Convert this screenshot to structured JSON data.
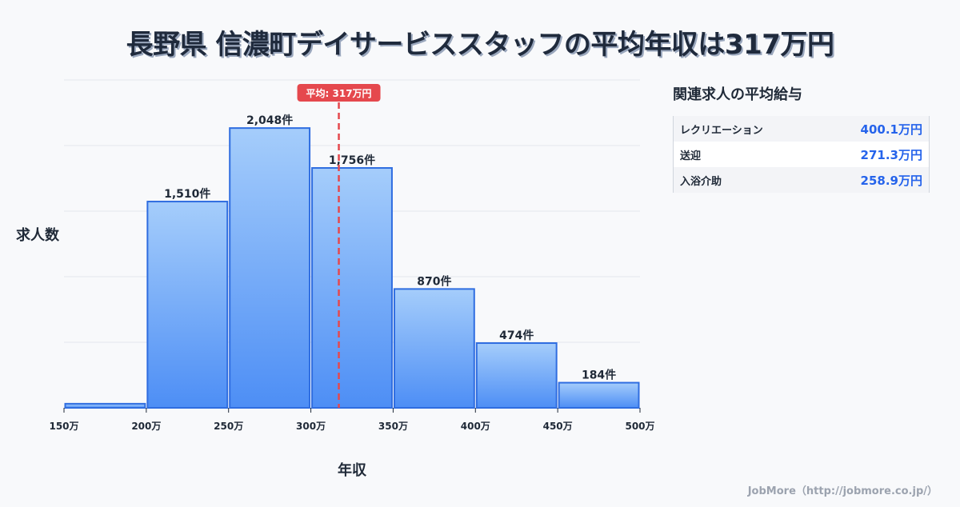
{
  "title": "長野県 信濃町デイサービススタッフの平均年収は317万円",
  "chart_data": {
    "type": "bar",
    "title": "長野県 信濃町デイサービススタッフの平均年収は317万円",
    "xlabel": "年収",
    "ylabel": "求人数",
    "categories": [
      "150-200万",
      "200-250万",
      "250-300万",
      "300-350万",
      "350-400万",
      "400-450万",
      "450-500万"
    ],
    "bin_edges": [
      150,
      200,
      250,
      300,
      350,
      400,
      450,
      500
    ],
    "x_tick_labels": [
      "150万",
      "200万",
      "250万",
      "300万",
      "350万",
      "400万",
      "450万",
      "500万"
    ],
    "values": [
      30,
      1510,
      2048,
      1756,
      870,
      474,
      184
    ],
    "value_labels": [
      "",
      "1,510件",
      "2,048件",
      "1,756件",
      "870件",
      "474件",
      "184件"
    ],
    "ylim": [
      0,
      2400
    ],
    "grid": true,
    "mean_line": {
      "value": 317,
      "label": "平均: 317万円",
      "color": "#e5484d"
    },
    "bar_color_top": "#a5cdfb",
    "bar_color_bottom": "#4d8ef5",
    "bar_border": "#2f6de0"
  },
  "related": {
    "title": "関連求人の平均給与",
    "rows": [
      {
        "label": "レクリエーション",
        "value": "400.1万円"
      },
      {
        "label": "送迎",
        "value": "271.3万円"
      },
      {
        "label": "入浴介助",
        "value": "258.9万円"
      }
    ]
  },
  "credit": "JobMore（http://jobmore.co.jp/）"
}
